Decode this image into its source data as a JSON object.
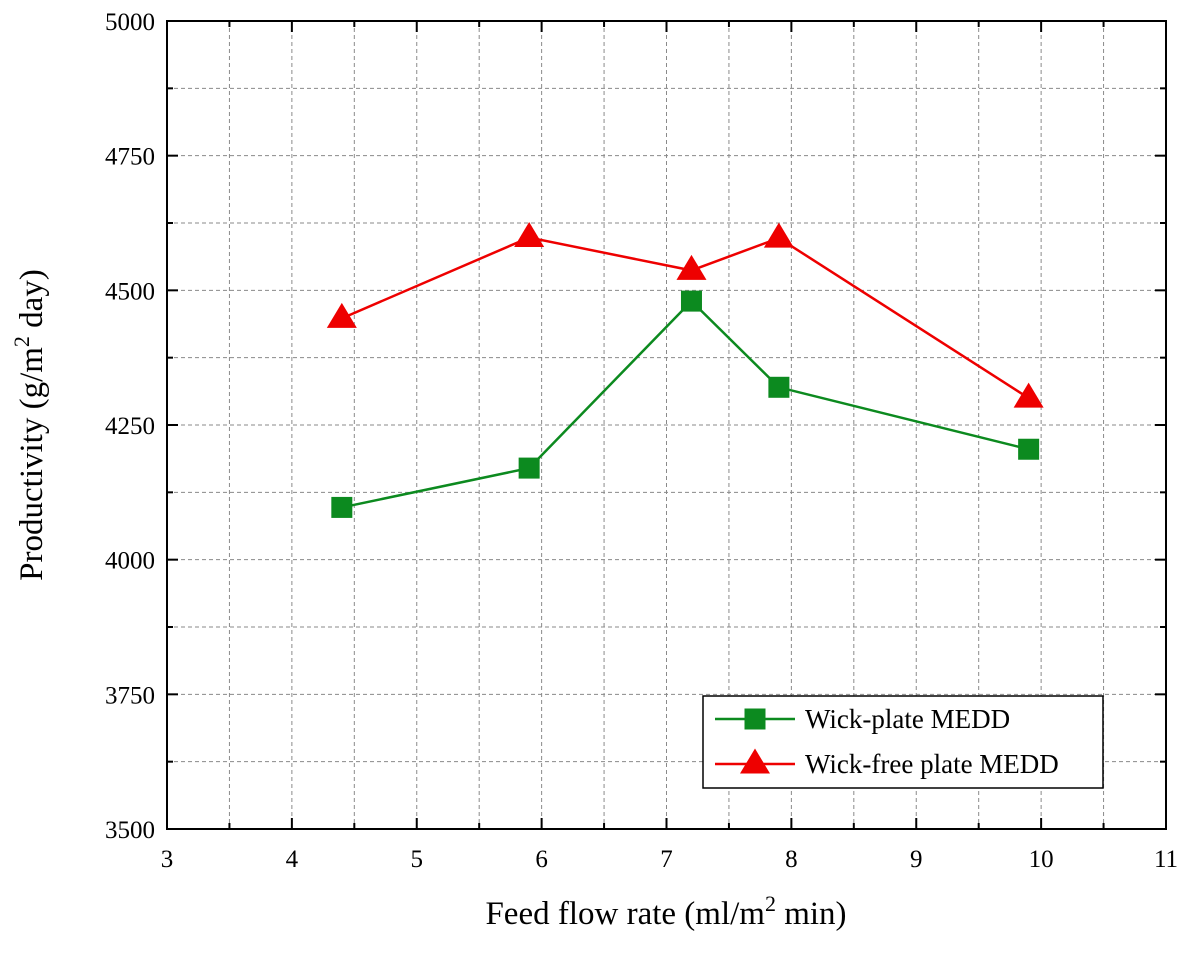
{
  "chart_data": {
    "type": "line",
    "title": "",
    "xlabel": {
      "main": "Feed flow rate (ml/m",
      "sup": "2",
      "tail": " min)"
    },
    "ylabel": {
      "main": "Productivity (g/m",
      "sup": "2",
      "tail": " day)"
    },
    "xlim": [
      3,
      11
    ],
    "ylim": [
      3500,
      5000
    ],
    "x_major_ticks": [
      3,
      4,
      5,
      6,
      7,
      8,
      9,
      10,
      11
    ],
    "x_tick_labels": [
      "3",
      "4",
      "5",
      "6",
      "7",
      "8",
      "9",
      "10",
      "11"
    ],
    "y_major_ticks": [
      3500,
      3750,
      4000,
      4250,
      4500,
      4750,
      5000
    ],
    "y_tick_labels": [
      "3500",
      "3750",
      "4000",
      "4250",
      "4500",
      "4750",
      "5000"
    ],
    "x_minor_step": 0.5,
    "y_minor_step": 125,
    "grid": true,
    "legend_position": "bottom-right",
    "series": [
      {
        "name": "Wick-plate MEDD",
        "color": "#0c8a1f",
        "marker": "square",
        "x": [
          4.4,
          5.9,
          7.2,
          7.9,
          9.9
        ],
        "y": [
          4097,
          4170,
          4480,
          4320,
          4205
        ]
      },
      {
        "name": "Wick-free plate MEDD",
        "color": "#ee0000",
        "marker": "triangle",
        "x": [
          4.4,
          5.9,
          7.2,
          7.9,
          9.9
        ],
        "y": [
          4448,
          4598,
          4537,
          4597,
          4300
        ]
      }
    ]
  }
}
